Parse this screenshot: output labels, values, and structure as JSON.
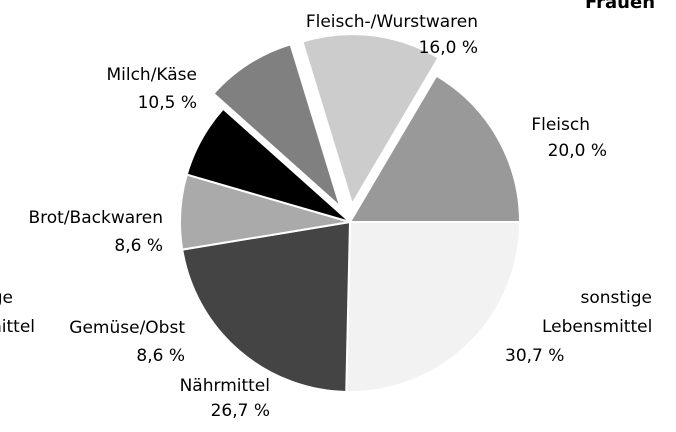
{
  "chart_data": {
    "type": "pie",
    "title": "Frauen",
    "categories": [
      "sonstige Lebensmittel",
      "Nährmittel",
      "Gemüse/Obst",
      "Brot/Backwaren",
      "Milch/Käse",
      "Fleisch-/Wurstwaren",
      "Fleisch"
    ],
    "values": [
      30.7,
      26.7,
      8.6,
      8.6,
      10.5,
      16.0,
      20.0
    ],
    "value_labels": [
      "30,7 %",
      "26,7 %",
      "8,6 %",
      "8,6 %",
      "10,5 %",
      "16,0 %",
      "20,0 %"
    ],
    "colors": [
      "#f2f2f2",
      "#444444",
      "#aaaaaa",
      "#000000",
      "#808080",
      "#cccccc",
      "#999999"
    ],
    "explode": [
      false,
      false,
      false,
      false,
      true,
      true,
      false
    ]
  },
  "neighbor_chart_labels": [
    "sonstige",
    "Lebensmittel"
  ]
}
